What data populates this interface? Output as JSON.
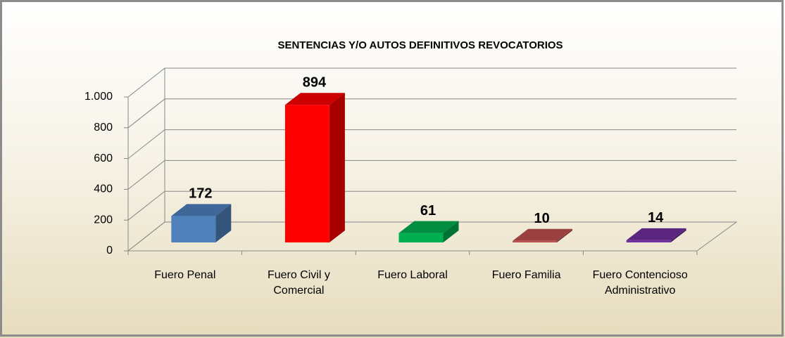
{
  "chart_data": {
    "type": "bar3d",
    "title": "SENTENCIAS Y/O AUTOS DEFINITIVOS REVOCATORIOS",
    "categories": [
      "Fuero Penal",
      "Fuero Civil y Comercial",
      "Fuero Laboral",
      "Fuero Familia",
      "Fuero Contencioso Administrativo"
    ],
    "values": [
      172,
      894,
      61,
      10,
      14
    ],
    "colors": [
      "#4f81bd",
      "#ff0000",
      "#00b050",
      "#c0504d",
      "#7030a0"
    ],
    "ylim": [
      0,
      1000
    ],
    "yticks": [
      0,
      200,
      400,
      600,
      800,
      {
        "value": 1000,
        "label": "1.000"
      }
    ],
    "grid": true
  }
}
